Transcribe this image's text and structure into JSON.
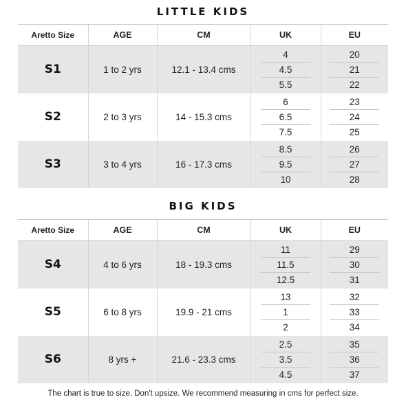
{
  "headers": [
    "Aretto Size",
    "AGE",
    "CM",
    "UK",
    "EU"
  ],
  "sections": [
    {
      "title": "LITTLE KIDS",
      "rows": [
        {
          "size": "S1",
          "age": "1 to 2 yrs",
          "cm": "12.1 - 13.4 cms",
          "uk": [
            "4",
            "4.5",
            "5.5"
          ],
          "eu": [
            "20",
            "21",
            "22"
          ]
        },
        {
          "size": "S2",
          "age": "2 to 3 yrs",
          "cm": "14 - 15.3 cms",
          "uk": [
            "6",
            "6.5",
            "7.5"
          ],
          "eu": [
            "23",
            "24",
            "25"
          ]
        },
        {
          "size": "S3",
          "age": "3 to 4 yrs",
          "cm": "16 - 17.3 cms",
          "uk": [
            "8.5",
            "9.5",
            "10"
          ],
          "eu": [
            "26",
            "27",
            "28"
          ]
        }
      ]
    },
    {
      "title": "BIG KIDS",
      "rows": [
        {
          "size": "S4",
          "age": "4 to 6 yrs",
          "cm": "18 - 19.3 cms",
          "uk": [
            "11",
            "11.5",
            "12.5"
          ],
          "eu": [
            "29",
            "30",
            "31"
          ]
        },
        {
          "size": "S5",
          "age": "6 to 8 yrs",
          "cm": "19.9 - 21 cms",
          "uk": [
            "13",
            "1",
            "2"
          ],
          "eu": [
            "32",
            "33",
            "34"
          ]
        },
        {
          "size": "S6",
          "age": "8 yrs +",
          "cm": "21.6 - 23.3 cms",
          "uk": [
            "2.5",
            "3.5",
            "4.5"
          ],
          "eu": [
            "35",
            "36",
            "37"
          ]
        }
      ]
    }
  ],
  "footnote": "The chart is true to size. Don't upsize. We recommend measuring in cms for perfect size.",
  "colors": {
    "shaded_row": "#e6e6e6",
    "divider": "#c9c9c9"
  }
}
